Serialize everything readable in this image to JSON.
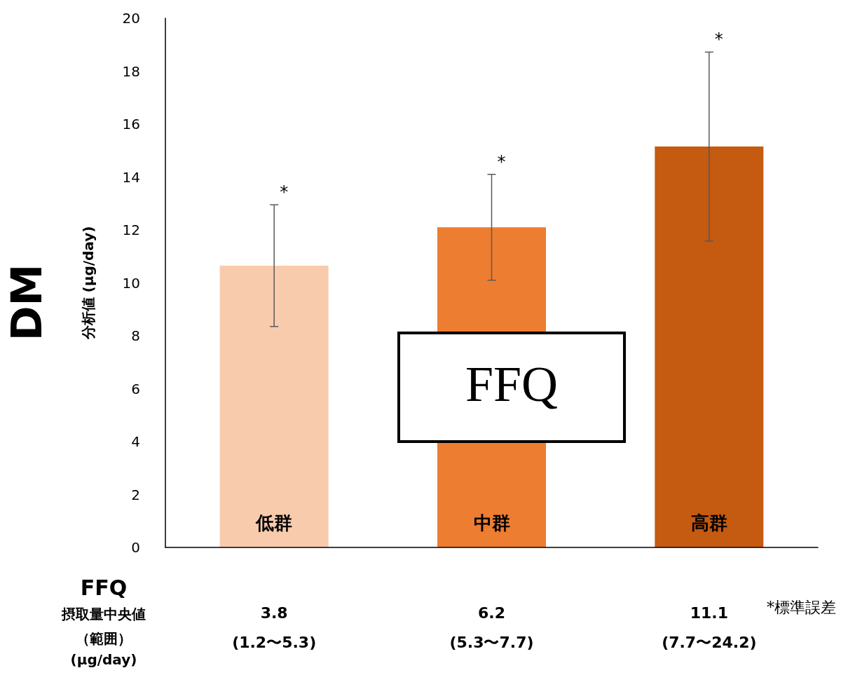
{
  "chart_data": {
    "type": "bar",
    "title": "DM",
    "ylabel": "分析値 (µg/day)",
    "categories": [
      "低群",
      "中群",
      "高群"
    ],
    "values": [
      10.65,
      12.1,
      15.15
    ],
    "errors": [
      2.3,
      2.0,
      3.57
    ],
    "colors": [
      "#f8cbad",
      "#ed7d31",
      "#c55a11"
    ],
    "ylim": [
      0,
      20
    ],
    "yticks": [
      0,
      2,
      4,
      6,
      8,
      10,
      12,
      14,
      16,
      18,
      20
    ],
    "grid": false,
    "annotations": [
      "FFQ",
      "摂取量中央値",
      "（範囲）",
      "(µg/day)",
      "FFQ",
      "*標準誤差",
      "3.8\n(1.2〜5.3)",
      "6.2\n(5.3〜7.7)",
      "11.1\n(7.7〜24.2)",
      {
        "text": "*",
        "x": "低群",
        "y": 12.95
      },
      {
        "text": "*",
        "x": "中群",
        "y": 14.1
      },
      {
        "text": "*",
        "x": "高群",
        "y": 18.72
      }
    ]
  }
}
